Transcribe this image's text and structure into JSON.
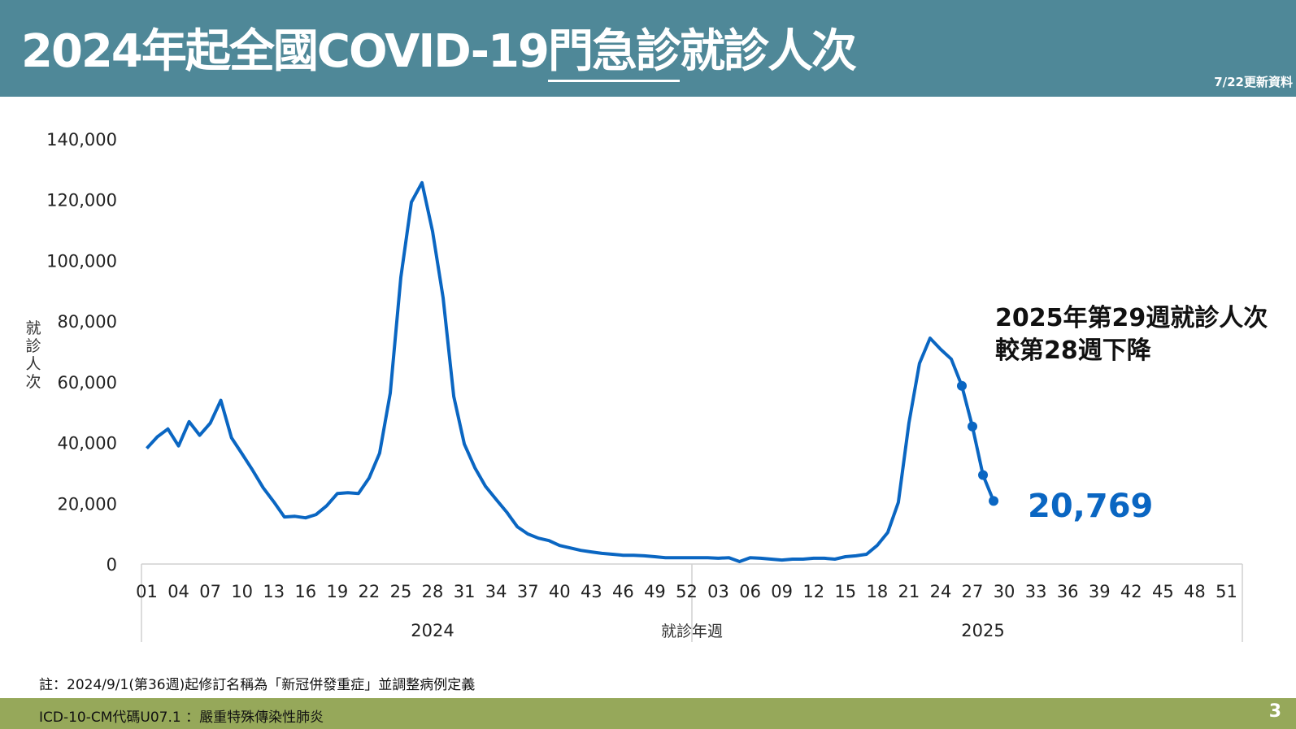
{
  "header": {
    "title_part1": "2024年起全國COVID-19",
    "title_underlined": "門急診",
    "title_part2": "就診人次",
    "update_note": "7/22更新資料"
  },
  "colors": {
    "header": "#4f8898",
    "footer": "#96a85a",
    "line": "#0a66c2"
  },
  "chart_data": {
    "type": "line",
    "title": "2024年起全國COVID-19門急診就診人次",
    "xlabel": "就診年週",
    "ylabel": "就診人次",
    "ylim": [
      0,
      140000
    ],
    "yticks": [
      "0",
      "20,000",
      "40,000",
      "60,000",
      "80,000",
      "100,000",
      "120,000",
      "140,000"
    ],
    "ytick_values": [
      0,
      20000,
      40000,
      60000,
      80000,
      100000,
      120000,
      140000
    ],
    "years": [
      {
        "label": "2024",
        "weeks": 52
      },
      {
        "label": "2025",
        "weeks": 52
      }
    ],
    "xtick_labels": [
      "01",
      "04",
      "07",
      "10",
      "13",
      "16",
      "19",
      "22",
      "25",
      "28",
      "31",
      "34",
      "37",
      "40",
      "43",
      "46",
      "49",
      "52",
      "03",
      "06",
      "09",
      "12",
      "15",
      "18",
      "21",
      "24",
      "27",
      "30",
      "33",
      "36",
      "39",
      "42",
      "45",
      "48",
      "51"
    ],
    "series": [
      {
        "name": "2024",
        "values": [
          38100,
          41900,
          44500,
          38900,
          46900,
          42400,
          46400,
          53900,
          41600,
          36300,
          30900,
          25100,
          20500,
          15500,
          15700,
          15200,
          16300,
          19200,
          23200,
          23500,
          23200,
          28300,
          36500,
          56300,
          94400,
          119200,
          125600,
          109600,
          87700,
          55200,
          39500,
          31700,
          25600,
          21300,
          17100,
          12300,
          9900,
          8500,
          7700,
          6100,
          5300,
          4500,
          4000,
          3500,
          3200,
          2900,
          2900,
          2700,
          2400,
          2100,
          2100,
          2100
        ]
      },
      {
        "name": "2025",
        "values": [
          2100,
          2100,
          1900,
          2100,
          800,
          2100,
          1900,
          1600,
          1300,
          1600,
          1600,
          1900,
          1900,
          1600,
          2400,
          2700,
          3200,
          6100,
          10400,
          20300,
          46400,
          66100,
          74400,
          70700,
          67500,
          58700,
          45300,
          29300,
          20769
        ],
        "markers_from_week": 26
      }
    ],
    "annotations": {
      "line1": "2025年第29週就診人次",
      "line2": "較第28週下降",
      "last_value": "20,769"
    },
    "grid": false
  },
  "note": "註：2024/9/1(第36週)起修訂名稱為「新冠併發重症」並調整病例定義",
  "footer": {
    "code": "ICD-10-CM代碼U07.1 ：嚴重特殊傳染性肺炎",
    "page": "3"
  }
}
